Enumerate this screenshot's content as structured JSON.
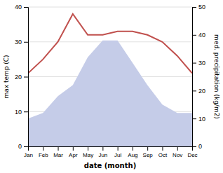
{
  "chart_data": {
    "type": "line",
    "categories": [
      "Jan",
      "Feb",
      "Mar",
      "Apr",
      "May",
      "Jun",
      "Jul",
      "Aug",
      "Sep",
      "Oct",
      "Nov",
      "Dec"
    ],
    "series": [
      {
        "type": "area",
        "axis": "y2",
        "color": "#c5cce8",
        "values": [
          10,
          12,
          18,
          22,
          32,
          38,
          38,
          30,
          22,
          15,
          12,
          12
        ]
      },
      {
        "type": "line",
        "color": "#c0504d",
        "values": [
          21,
          25,
          30,
          38,
          32,
          32,
          33,
          33,
          32,
          30,
          26,
          21
        ]
      }
    ],
    "xlabel": "date (month)",
    "ylabel": "max temp (C)",
    "y2label": "med. precipitation (kg/m2)",
    "ylim": [
      0,
      40
    ],
    "yticks": [
      0,
      10,
      20,
      30,
      40
    ],
    "y2lim": [
      0,
      50
    ],
    "y2ticks": [
      0,
      10,
      20,
      30,
      40,
      50
    ],
    "grid": true
  }
}
